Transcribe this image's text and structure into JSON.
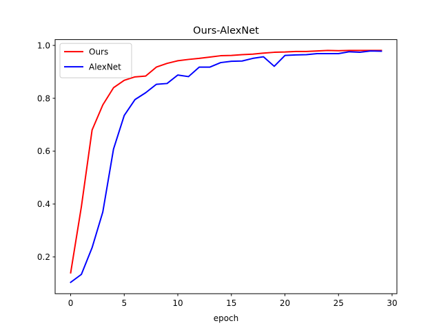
{
  "chart_data": {
    "type": "line",
    "title": "Ours-AlexNet",
    "xlabel": "epoch",
    "ylabel": "",
    "xlim": [
      -1.45,
      30.45
    ],
    "ylim": [
      0.061,
      1.022
    ],
    "xticks": [
      0,
      5,
      10,
      15,
      20,
      25,
      30
    ],
    "yticks": [
      0.2,
      0.4,
      0.6,
      0.8,
      1.0
    ],
    "ytick_labels": [
      "0.2",
      "0.4",
      "0.6",
      "0.8",
      "1.0"
    ],
    "grid": false,
    "legend_position": "top-left",
    "x": [
      0,
      1,
      2,
      3,
      4,
      5,
      6,
      7,
      8,
      9,
      10,
      11,
      12,
      13,
      14,
      15,
      16,
      17,
      18,
      19,
      20,
      21,
      22,
      23,
      24,
      25,
      26,
      27,
      28,
      29
    ],
    "series": [
      {
        "name": "Ours",
        "color": "#ff0000",
        "values": [
          0.14,
          0.39,
          0.68,
          0.775,
          0.84,
          0.868,
          0.881,
          0.884,
          0.918,
          0.932,
          0.942,
          0.947,
          0.951,
          0.956,
          0.961,
          0.962,
          0.965,
          0.967,
          0.971,
          0.974,
          0.975,
          0.977,
          0.977,
          0.979,
          0.981,
          0.98,
          0.981,
          0.981,
          0.981,
          0.981
        ]
      },
      {
        "name": "AlexNet",
        "color": "#0000ff",
        "values": [
          0.104,
          0.134,
          0.235,
          0.37,
          0.608,
          0.735,
          0.795,
          0.821,
          0.853,
          0.856,
          0.888,
          0.882,
          0.918,
          0.918,
          0.935,
          0.94,
          0.941,
          0.951,
          0.957,
          0.921,
          0.962,
          0.964,
          0.965,
          0.969,
          0.969,
          0.969,
          0.976,
          0.974,
          0.979,
          0.978
        ]
      }
    ]
  }
}
